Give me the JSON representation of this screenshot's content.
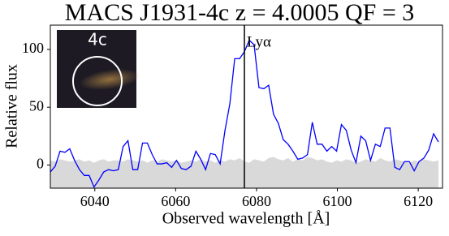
{
  "chart_data": {
    "type": "line",
    "title": "MACS J1931-4c z = 4.0005 QF = 3",
    "xlabel": "Observed wavelength [Å]",
    "ylabel": "Relative flux",
    "inset_label": "4c",
    "x": [
      6029.0,
      6030.2,
      6031.4,
      6032.6,
      6033.8,
      6035.0,
      6036.2,
      6037.4,
      6038.6,
      6039.8,
      6041.0,
      6042.2,
      6043.4,
      6044.6,
      6045.8,
      6047.0,
      6048.2,
      6049.4,
      6050.6,
      6051.8,
      6053.0,
      6054.2,
      6055.4,
      6056.6,
      6057.8,
      6059.0,
      6060.2,
      6061.4,
      6062.6,
      6063.8,
      6065.0,
      6066.2,
      6067.4,
      6068.6,
      6069.8,
      6071.0,
      6072.2,
      6073.4,
      6074.6,
      6075.8,
      6077.0,
      6078.2,
      6079.4,
      6080.6,
      6081.8,
      6083.0,
      6084.2,
      6085.4,
      6086.6,
      6087.8,
      6089.0,
      6090.2,
      6091.4,
      6092.6,
      6093.8,
      6095.0,
      6096.2,
      6097.4,
      6098.6,
      6099.8,
      6101.0,
      6102.2,
      6103.4,
      6104.6,
      6105.8,
      6107.0,
      6108.2,
      6109.4,
      6110.6,
      6111.8,
      6113.0,
      6114.2,
      6115.4,
      6116.6,
      6117.8,
      6119.0,
      6120.2,
      6121.4,
      6122.6,
      6123.8,
      6125.0
    ],
    "values": [
      -6,
      -1,
      12,
      11,
      14,
      4,
      -4,
      -9,
      -9,
      -19,
      -13,
      -6,
      -4,
      -5,
      -4,
      16,
      21,
      -4,
      -4,
      19,
      19,
      9,
      1,
      1,
      2,
      -2,
      4,
      -3,
      -4,
      -1,
      12,
      5,
      -4,
      10,
      9,
      1,
      30,
      53,
      92,
      92,
      98,
      108,
      104,
      67,
      66,
      69,
      44,
      36,
      22,
      18,
      12,
      5,
      6,
      9,
      37,
      18,
      18,
      12,
      16,
      12,
      35,
      30,
      13,
      2,
      25,
      21,
      4,
      18,
      16,
      32,
      32,
      -2,
      -4,
      3,
      3,
      -5,
      3,
      6,
      13,
      27,
      20
    ],
    "color": "#0000ff",
    "noise_values": [
      4,
      3,
      5,
      4,
      3,
      4,
      5,
      3,
      4,
      2,
      4,
      5,
      3,
      4,
      4,
      3,
      5,
      4,
      3,
      4,
      2,
      4,
      3,
      5,
      4,
      3,
      4,
      2,
      3,
      4,
      3,
      5,
      3,
      4,
      2,
      4,
      3,
      5,
      4,
      6,
      3,
      2,
      5,
      4,
      3,
      6,
      7,
      5,
      4,
      6,
      3,
      5,
      4,
      7,
      6,
      4,
      5,
      3,
      2,
      4,
      3,
      5,
      4,
      2,
      3,
      5,
      4,
      3,
      6,
      4,
      3,
      5,
      4,
      3,
      2,
      4,
      3,
      5,
      4,
      3,
      4
    ],
    "noise_color": "#d9d9d9",
    "annotations": [
      {
        "x": 6077,
        "label": "Lyα"
      }
    ],
    "xlim": [
      6029,
      6126
    ],
    "ylim": [
      -20,
      121
    ],
    "xticks": [
      6040,
      6060,
      6080,
      6100,
      6120
    ],
    "yticks": [
      0,
      50,
      100
    ]
  }
}
